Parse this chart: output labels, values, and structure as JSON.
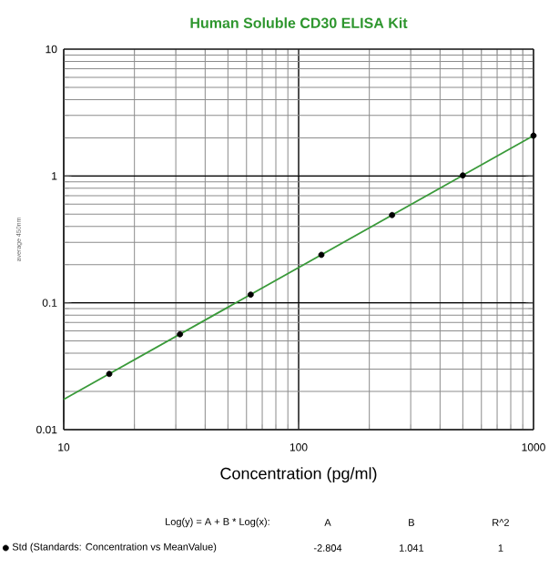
{
  "chart_data": {
    "type": "scatter",
    "title": "Human Soluble CD30 ELISA Kit",
    "xlabel": "Concentration (pg/ml)",
    "ylabel": "average 450nm",
    "log": "xy",
    "grid": true,
    "legend": "bottom",
    "marker": "circle",
    "xlim": [
      10,
      1000
    ],
    "xticks": [
      10,
      100,
      1000
    ],
    "ylim": [
      0.01,
      10
    ],
    "yticks": [
      0.01,
      0.1,
      1,
      10
    ],
    "series": [
      {
        "name": "Std (Standards: Concentration vs MeanValue)",
        "color": "#000000",
        "x": [
          15.625,
          31.25,
          62.5,
          125,
          250,
          500,
          1000
        ],
        "values": [
          0.0275,
          0.0565,
          0.116,
          0.239,
          0.492,
          1.01,
          2.08
        ]
      },
      {
        "type": "line",
        "color": "#3a9a3a",
        "marker": "none",
        "line_style": "solid",
        "x": [
          10,
          1000
        ],
        "values": [
          0.0173,
          2.08
        ]
      }
    ],
    "annotations": [
      "Log(y) = A + B * Log(x):",
      "A",
      "B",
      "R^2",
      "-2.804",
      "1.041",
      "1"
    ]
  }
}
